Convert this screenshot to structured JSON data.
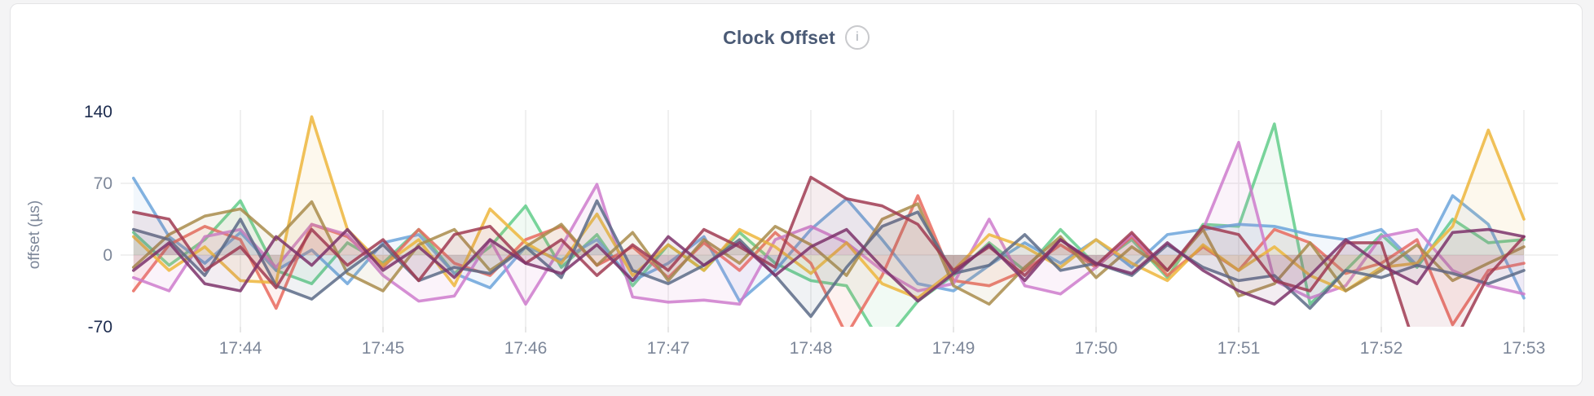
{
  "card": {
    "title": "Clock Offset",
    "info_icon_glyph": "i"
  },
  "colors": {
    "page_background": "#f4f4f5",
    "card_background": "#ffffff",
    "card_border": "#e4e4e6",
    "title_text": "#4a5a75",
    "axis_text_muted": "#7d8799",
    "axis_text_emphasis": "#1c2b4e",
    "gridline": "#ececec"
  },
  "chart_data": {
    "type": "line",
    "title": "Clock Offset",
    "xlabel": "",
    "ylabel": "offset (µs)",
    "legend": "none",
    "grid": {
      "vertical_at_x_ticks": true,
      "horizontal_at": [
        70,
        0
      ]
    },
    "ylim": [
      -70,
      141
    ],
    "x_tick_labels": [
      "17:44",
      "17:45",
      "17:46",
      "17:47",
      "17:48",
      "17:49",
      "17:50",
      "17:51",
      "17:52",
      "17:53"
    ],
    "x_tick_minutes": [
      44,
      45,
      46,
      47,
      48,
      49,
      50,
      51,
      52,
      53
    ],
    "y_ticks": [
      {
        "value": 140,
        "label": "140",
        "emphasis": true
      },
      {
        "value": 70,
        "label": "70",
        "emphasis": false
      },
      {
        "value": 0,
        "label": "0",
        "emphasis": false
      },
      {
        "value": -70,
        "label": "-70",
        "emphasis": true
      }
    ],
    "x_start_minutes": 43.25,
    "x_step_minutes": 0.25,
    "series": [
      {
        "name": "green",
        "color": "#62CC89",
        "values": [
          22,
          -10,
          15,
          53,
          -15,
          -28,
          12,
          -8,
          25,
          -18,
          8,
          48,
          -12,
          20,
          -30,
          10,
          -15,
          22,
          -8,
          -25,
          -30,
          -88,
          -45,
          -20,
          12,
          -15,
          25,
          -10,
          15,
          -22,
          30,
          28,
          128,
          -48,
          -15,
          20,
          -12,
          35,
          12,
          15
        ]
      },
      {
        "name": "blue",
        "color": "#6CA4DA",
        "values": [
          75,
          18,
          -8,
          22,
          -15,
          5,
          -28,
          12,
          20,
          -18,
          -32,
          8,
          -5,
          15,
          -25,
          -8,
          18,
          -45,
          -15,
          25,
          55,
          15,
          -28,
          -35,
          -10,
          12,
          -8,
          15,
          -12,
          20,
          25,
          30,
          28,
          20,
          15,
          25,
          -10,
          58,
          30,
          -42
        ]
      },
      {
        "name": "salmon",
        "color": "#E96A5E",
        "values": [
          -35,
          10,
          28,
          15,
          -52,
          30,
          18,
          -12,
          25,
          -8,
          -20,
          15,
          28,
          -10,
          8,
          -22,
          12,
          -15,
          22,
          -8,
          -78,
          -20,
          58,
          -25,
          -30,
          -15,
          10,
          -12,
          18,
          -20,
          8,
          -15,
          25,
          12,
          -18,
          -8,
          15,
          -68,
          -15,
          -8
        ]
      },
      {
        "name": "orchid",
        "color": "#CE7BCC",
        "values": [
          -22,
          -35,
          18,
          25,
          -12,
          30,
          20,
          -20,
          -45,
          -40,
          15,
          -48,
          8,
          69,
          -41,
          -46,
          -44,
          -48,
          15,
          28,
          12,
          -15,
          -35,
          -28,
          35,
          -30,
          -38,
          -12,
          20,
          -15,
          25,
          110,
          -25,
          -42,
          -30,
          18,
          25,
          -15,
          -30,
          -38
        ]
      },
      {
        "name": "gold",
        "color": "#EDB63C",
        "values": [
          18,
          -15,
          8,
          -25,
          -27,
          135,
          25,
          -10,
          15,
          -30,
          45,
          12,
          -8,
          40,
          -20,
          10,
          -15,
          25,
          8,
          -18,
          12,
          -28,
          -42,
          -15,
          20,
          8,
          -12,
          15,
          -8,
          -25,
          10,
          -15,
          8,
          -20,
          -35,
          -12,
          -8,
          28,
          122,
          35
        ]
      },
      {
        "name": "khaki",
        "color": "#A98C4B",
        "values": [
          -12,
          20,
          38,
          45,
          15,
          52,
          -18,
          -35,
          10,
          25,
          -15,
          8,
          30,
          -10,
          22,
          -25,
          15,
          -8,
          28,
          10,
          -20,
          35,
          50,
          -30,
          -48,
          -12,
          18,
          -22,
          8,
          -15,
          25,
          -40,
          -28,
          12,
          -35,
          -15,
          10,
          -25,
          -8,
          8
        ]
      },
      {
        "name": "slate",
        "color": "#5C6B87",
        "values": [
          25,
          15,
          -20,
          35,
          -30,
          -43,
          -15,
          10,
          -25,
          -12,
          -18,
          8,
          -22,
          53,
          -15,
          -28,
          -10,
          15,
          -20,
          -60,
          -12,
          28,
          42,
          -18,
          -10,
          20,
          -15,
          -8,
          -20,
          10,
          -12,
          -25,
          -20,
          -52,
          -15,
          -22,
          -10,
          -18,
          -28,
          -15
        ]
      },
      {
        "name": "maroon",
        "color": "#A03B52",
        "values": [
          42,
          35,
          -15,
          8,
          -32,
          25,
          -10,
          15,
          -25,
          20,
          28,
          -8,
          15,
          -20,
          10,
          -15,
          25,
          8,
          -12,
          76,
          55,
          48,
          30,
          -15,
          8,
          -20,
          15,
          -10,
          22,
          -15,
          28,
          20,
          -25,
          -35,
          12,
          12,
          -95,
          -88,
          -20,
          18
        ]
      },
      {
        "name": "plum",
        "color": "#7D336B",
        "values": [
          -15,
          12,
          -28,
          -35,
          18,
          -10,
          25,
          -15,
          8,
          -22,
          15,
          -8,
          -18,
          10,
          -25,
          18,
          -10,
          12,
          -20,
          8,
          25,
          -12,
          -45,
          -18,
          10,
          -25,
          15,
          -8,
          -18,
          12,
          -15,
          -35,
          -48,
          -20,
          15,
          -10,
          -28,
          22,
          25,
          18
        ]
      }
    ]
  }
}
